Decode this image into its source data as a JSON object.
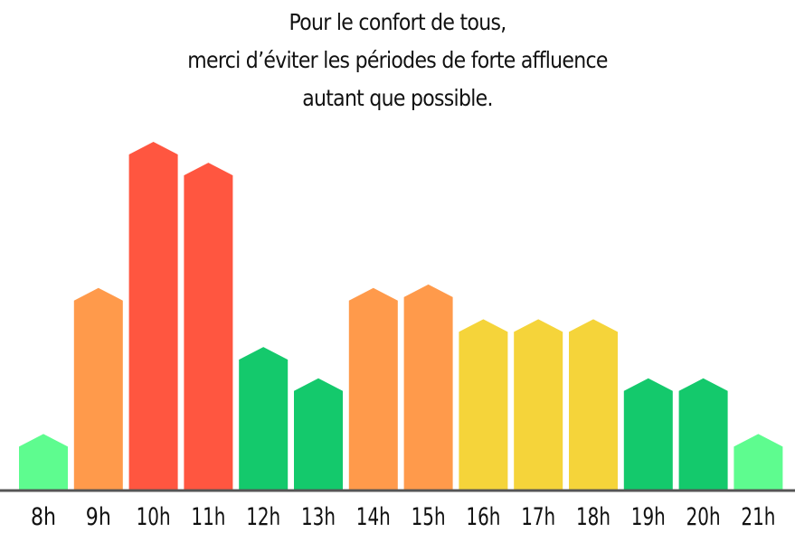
{
  "title_lines": [
    "Pour le confort de tous,",
    "merci d’éviter les périodes de forte affluence",
    "autant que possible."
  ],
  "chart_data": {
    "type": "bar",
    "title": "Pour le confort de tous, merci d’éviter les périodes de forte affluence autant que possible.",
    "xlabel": "",
    "ylabel": "",
    "categories": [
      "8h",
      "9h",
      "10h",
      "11h",
      "12h",
      "13h",
      "14h",
      "15h",
      "16h",
      "17h",
      "18h",
      "19h",
      "20h",
      "21h"
    ],
    "values": [
      16,
      58,
      100,
      94,
      41,
      32,
      58,
      59,
      49,
      49,
      49,
      32,
      32,
      16
    ],
    "ylim": [
      0,
      100
    ],
    "grid": false,
    "legend": "none",
    "bar_shape": "house",
    "colors": {
      "levels": [
        "#5efc8f",
        "#14c96c",
        "#f5d43a",
        "#ff9a4b",
        "#ff5640"
      ],
      "per_bar": [
        "#5efc8f",
        "#ff9a4b",
        "#ff5640",
        "#ff5640",
        "#14c96c",
        "#14c96c",
        "#ff9a4b",
        "#ff9a4b",
        "#f5d43a",
        "#f5d43a",
        "#f5d43a",
        "#14c96c",
        "#14c96c",
        "#5efc8f"
      ],
      "baseline": "#555555"
    }
  }
}
